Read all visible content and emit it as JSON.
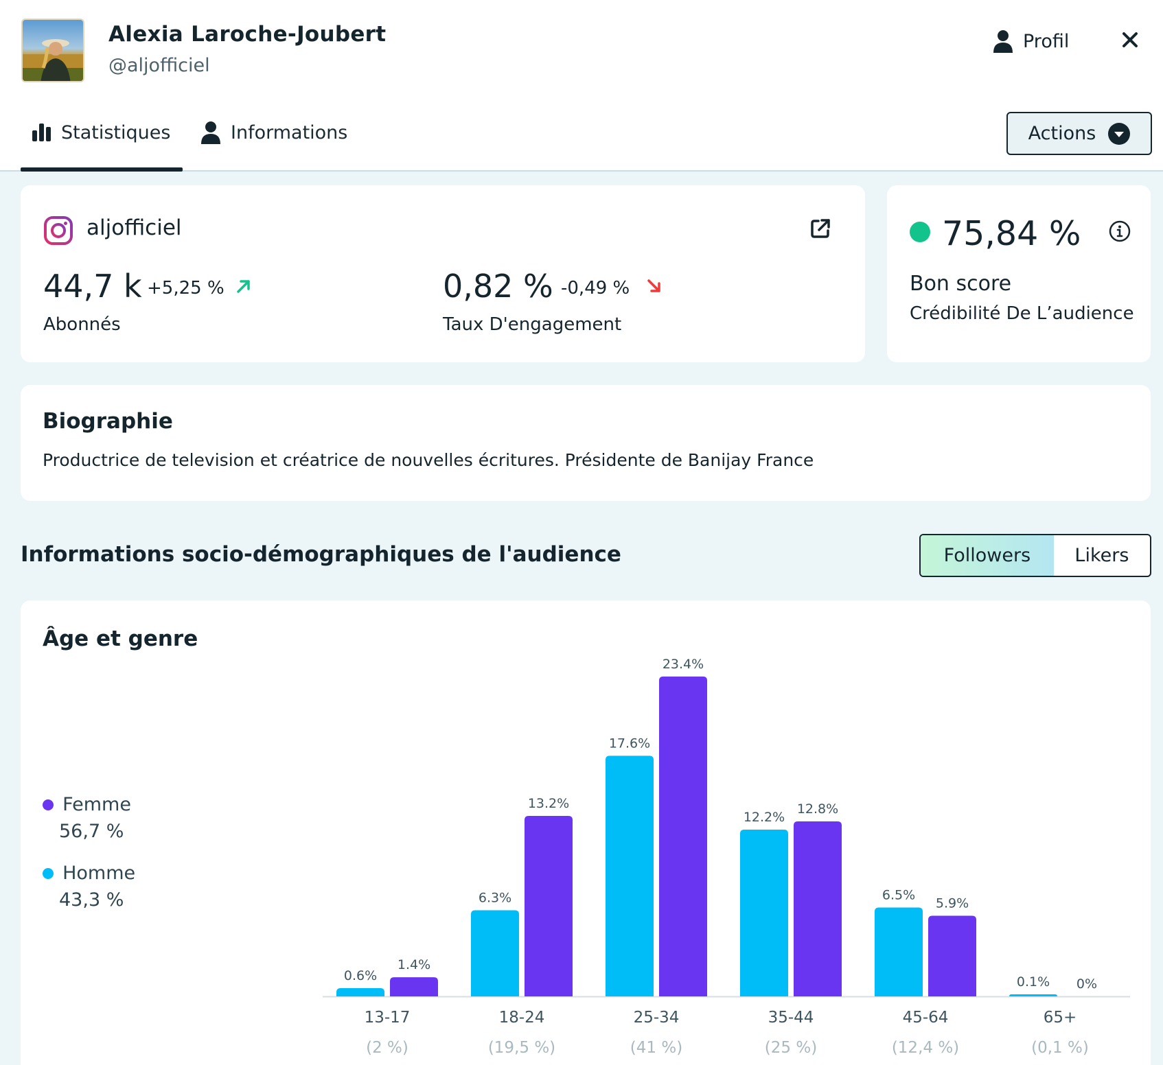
{
  "header": {
    "name": "Alexia Laroche-Joubert",
    "handle": "@aljofficiel",
    "profile_label": "Profil",
    "avatar_icon": "avatar-photo",
    "profile_icon": "user-icon",
    "close_icon": "close-icon"
  },
  "tabs": [
    {
      "label": "Statistiques",
      "icon": "bar-chart-icon",
      "active": true
    },
    {
      "label": "Informations",
      "icon": "user-icon",
      "active": false
    }
  ],
  "actions_label": "Actions",
  "account": {
    "platform_icon": "instagram-icon",
    "username": "aljofficiel",
    "followers": {
      "value": "44,7 k",
      "delta": "+5,25 %",
      "trend": "up",
      "label": "Abonnés"
    },
    "engagement": {
      "value": "0,82 %",
      "delta": "-0,49 %",
      "trend": "down",
      "label": "Taux D'engagement"
    }
  },
  "score": {
    "value": "75,84 %",
    "label": "Bon score",
    "sublabel": "Crédibilité De L’audience",
    "status_color": "#12c38b"
  },
  "bio": {
    "title": "Biographie",
    "text": "Productrice de television et créatrice de nouvelles écritures. Présidente de Banijay France"
  },
  "audience": {
    "title": "Informations socio-démographiques de l'audience",
    "toggle": {
      "followers": "Followers",
      "likers": "Likers",
      "selected": "Followers"
    }
  },
  "chart_card": {
    "title": "Âge et genre",
    "legend": [
      {
        "name": "Femme",
        "pct": "56,7 %",
        "color": "#6a35f0"
      },
      {
        "name": "Homme",
        "pct": "43,3 %",
        "color": "#00bdf7"
      }
    ]
  },
  "chart_data": {
    "type": "bar",
    "categories": [
      "13-17",
      "18-24",
      "25-34",
      "35-44",
      "45-64",
      "65+"
    ],
    "category_totals": [
      "(2 %)",
      "(19,5 %)",
      "(41 %)",
      "(25 %)",
      "(12,4 %)",
      "(0,1 %)"
    ],
    "series": [
      {
        "name": "Homme",
        "color": "#00bdf7",
        "values": [
          0.6,
          6.3,
          17.6,
          12.2,
          6.5,
          0.1
        ],
        "labels": [
          "0.6%",
          "6.3%",
          "17.6%",
          "12.2%",
          "6.5%",
          "0.1%"
        ]
      },
      {
        "name": "Femme",
        "color": "#6a35f0",
        "values": [
          1.4,
          13.2,
          23.4,
          12.8,
          5.9,
          0
        ],
        "labels": [
          "1.4%",
          "13.2%",
          "23.4%",
          "12.8%",
          "5.9%",
          "0%"
        ]
      }
    ],
    "ylim": [
      0,
      25
    ],
    "grid": false,
    "legend_position": "left"
  }
}
